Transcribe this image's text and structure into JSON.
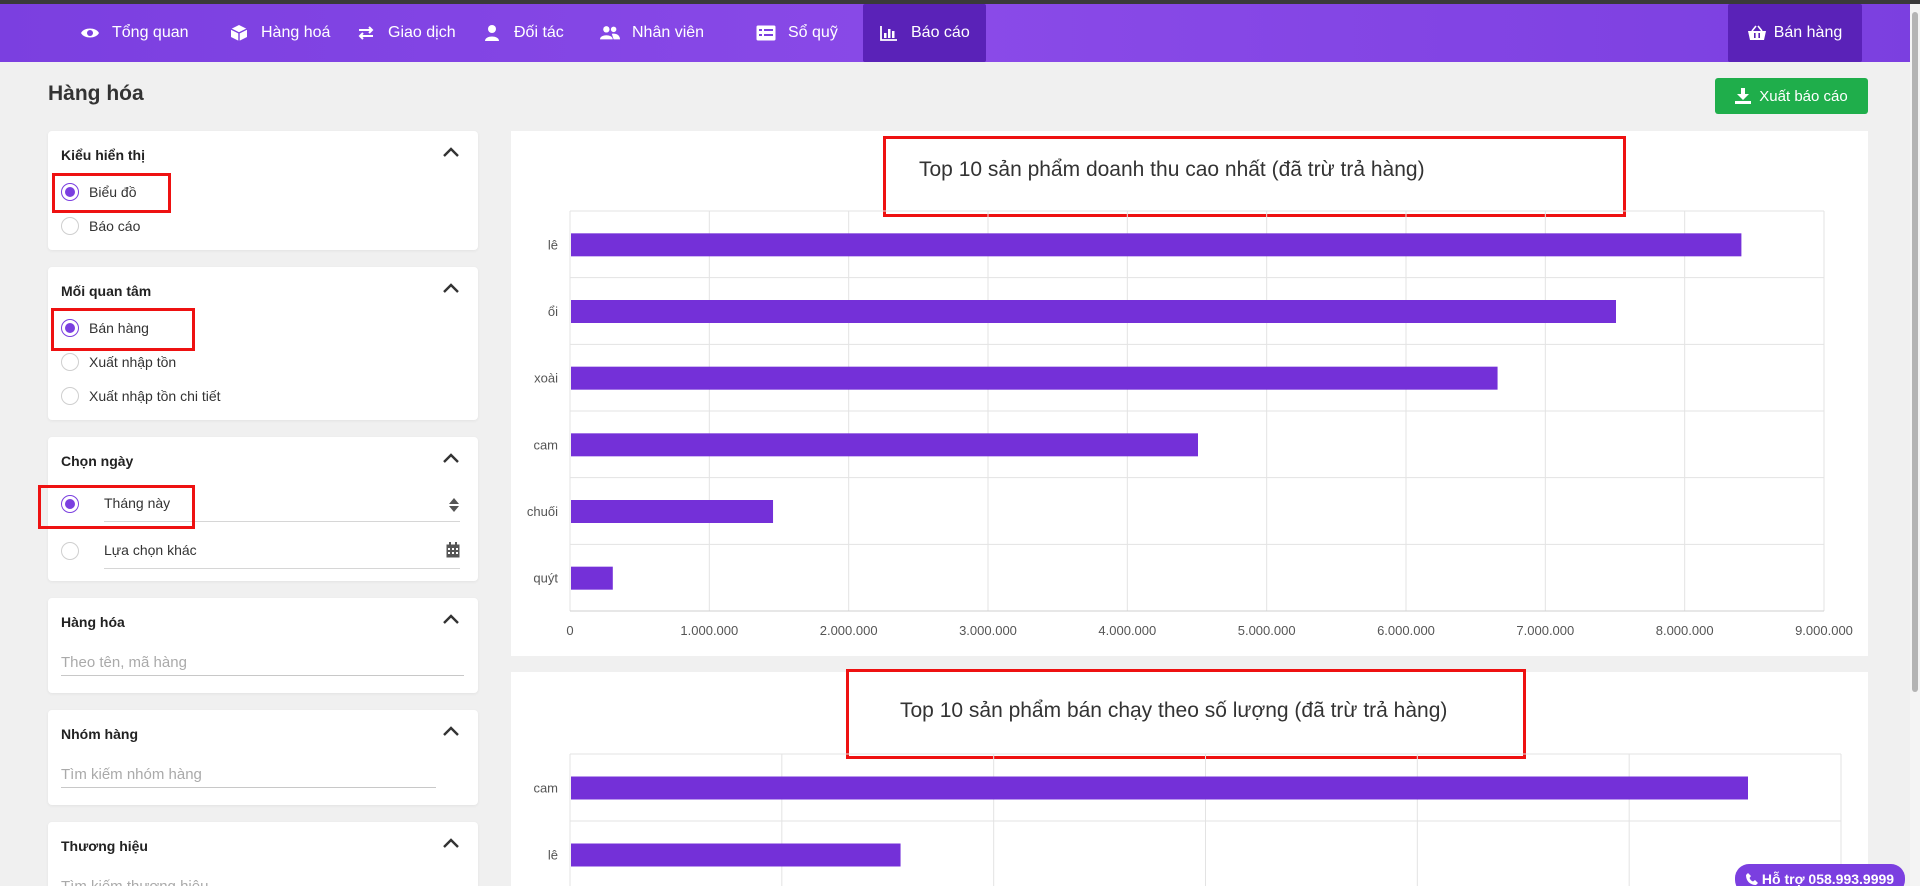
{
  "colors": {
    "accent": "#7b3fe0",
    "active_nav": "#5a22b8",
    "export": "#1fae4b",
    "bar": "#7430d8",
    "highlight_box": "#ee1111"
  },
  "nav": {
    "items": [
      {
        "label": "Tổng quan",
        "icon": "eye-icon"
      },
      {
        "label": "Hàng hoá",
        "icon": "box-icon"
      },
      {
        "label": "Giao dịch",
        "icon": "exchange-icon"
      },
      {
        "label": "Đối tác",
        "icon": "person-badge-icon"
      },
      {
        "label": "Nhân viên",
        "icon": "users-icon"
      },
      {
        "label": "Sổ quỹ",
        "icon": "ledger-icon"
      },
      {
        "label": "Báo cáo",
        "icon": "bar-chart-icon",
        "active": true
      }
    ],
    "sale_label": "Bán hàng",
    "sale_icon": "basket-icon"
  },
  "page": {
    "title": "Hàng hóa",
    "export_label": "Xuất báo cáo"
  },
  "filters": {
    "display": {
      "title": "Kiểu hiển thị",
      "options": [
        "Biểu đồ",
        "Báo cáo"
      ],
      "selected": "Biểu đồ"
    },
    "concern": {
      "title": "Mối quan tâm",
      "options": [
        "Bán hàng",
        "Xuất nhập tồn",
        "Xuất nhập tồn chi tiết"
      ],
      "selected": "Bán hàng"
    },
    "date": {
      "title": "Chọn ngày",
      "selected_value": "Tháng này",
      "other_label": "Lựa chọn khác"
    },
    "product": {
      "title": "Hàng hóa",
      "placeholder": "Theo tên, mã hàng"
    },
    "group": {
      "title": "Nhóm hàng",
      "placeholder": "Tìm kiếm nhóm hàng"
    },
    "brand": {
      "title": "Thương hiệu",
      "placeholder": "Tìm kiếm thương hiệu"
    }
  },
  "support_label": "Hỗ trợ 058.993.9999",
  "chart_data": [
    {
      "type": "bar",
      "orientation": "horizontal",
      "title": "Top 10 sản phẩm doanh thu cao nhất (đã trừ trả hàng)",
      "categories": [
        "lê",
        "ổi",
        "xoài",
        "cam",
        "chuối",
        "quýt"
      ],
      "values": [
        8400000,
        7500000,
        6650000,
        4500000,
        1450000,
        300000
      ],
      "xlim": [
        0,
        9000000
      ],
      "xticks": [
        "0",
        "1.000.000",
        "2.000.000",
        "3.000.000",
        "4.000.000",
        "5.000.000",
        "6.000.000",
        "7.000.000",
        "8.000.000",
        "9.000.000"
      ],
      "grid": true
    },
    {
      "type": "bar",
      "orientation": "horizontal",
      "title": "Top 10 sản phẩm bán chạy theo số lượng (đã trừ trả hàng)",
      "categories": [
        "cam",
        "lê"
      ],
      "values": [
        1,
        0.28
      ],
      "note_values_relative": true,
      "grid": true
    }
  ]
}
